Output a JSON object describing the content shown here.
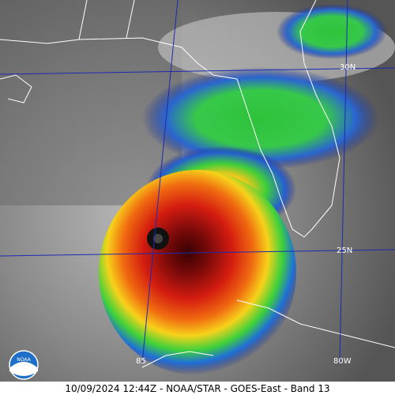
{
  "caption": "10/09/2024 12:44Z - NOAA/STAR - GOES-East - Band 13",
  "grid_labels": {
    "lat_30": "30N",
    "lat_25": "25N",
    "lon_85": "85",
    "lon_80": "80W"
  },
  "logo": "NOAA"
}
